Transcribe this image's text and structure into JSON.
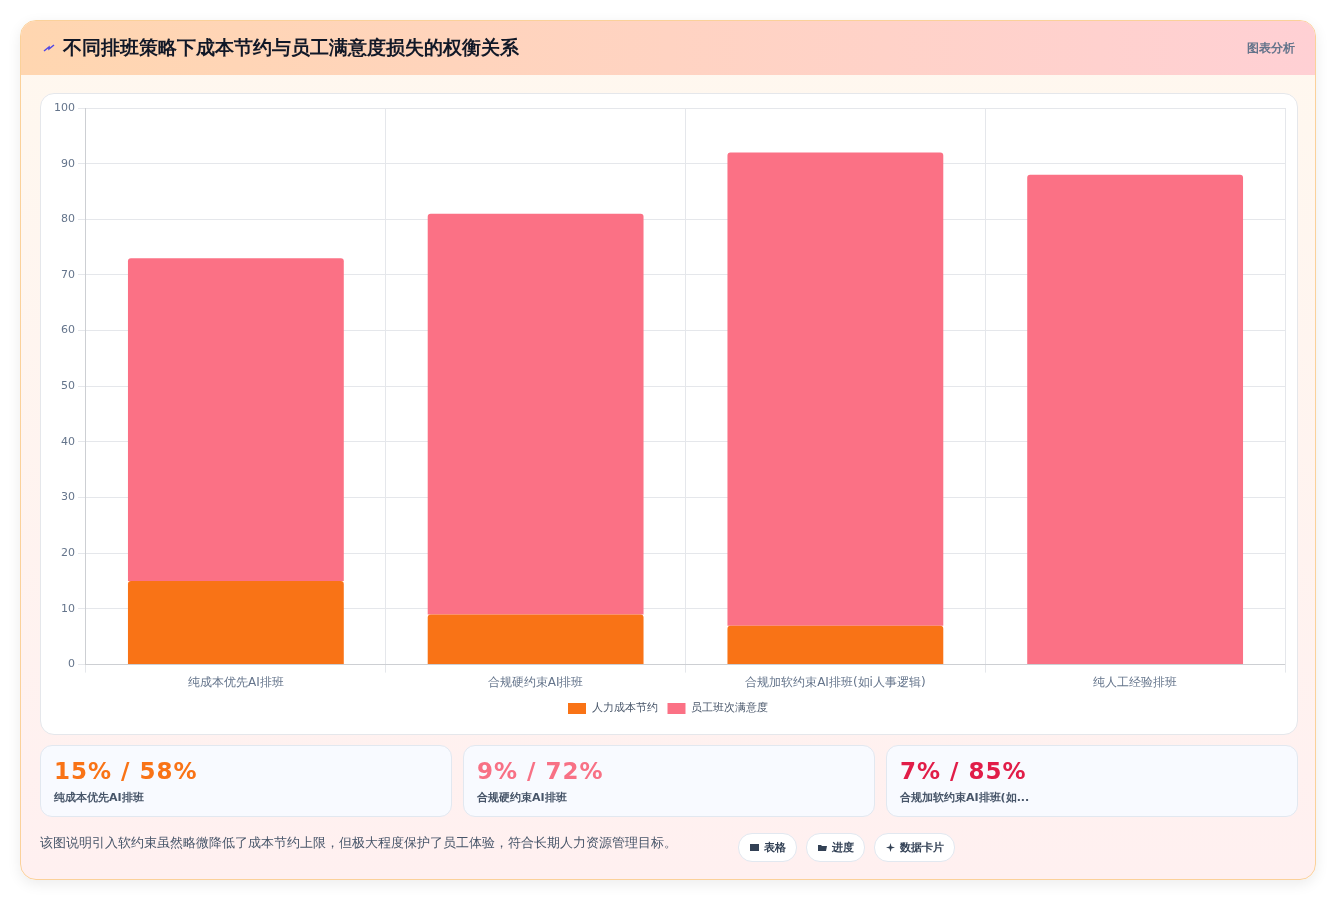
{
  "chart_data": {
    "type": "bar",
    "title": "不同排班策略下成本节约与员工满意度损失的权衡关系",
    "categories": [
      "纯成本优先AI排班",
      "合规硬约束AI排班",
      "合规加软约束AI排班(如i人事逻辑)",
      "纯人工经验排班"
    ],
    "series": [
      {
        "name": "人力成本节约",
        "color": "#f97316",
        "values": [
          15,
          9,
          7,
          0
        ]
      },
      {
        "name": "员工班次满意度",
        "color": "#fb7185",
        "values": [
          58,
          72,
          85,
          88
        ]
      }
    ],
    "stacked": true,
    "ylim": [
      0,
      100
    ],
    "yticks": [
      0,
      10,
      20,
      30,
      40,
      50,
      60,
      70,
      80,
      90,
      100
    ],
    "grid": true,
    "legend": "bottom",
    "annotations": [
      "图表分析",
      "15% / 58%",
      "9% / 72%",
      "7% / 85%",
      "纯成本优先AI排班",
      "合规硬约束AI排班",
      "合规加软约束AI排班(如...",
      "该图说明引入软约束虽然略微降低了成本节约上限，但极大程度保护了员工体验，符合长期人力资源管理目标。",
      "表格",
      "进度",
      "数据卡片"
    ]
  }
}
